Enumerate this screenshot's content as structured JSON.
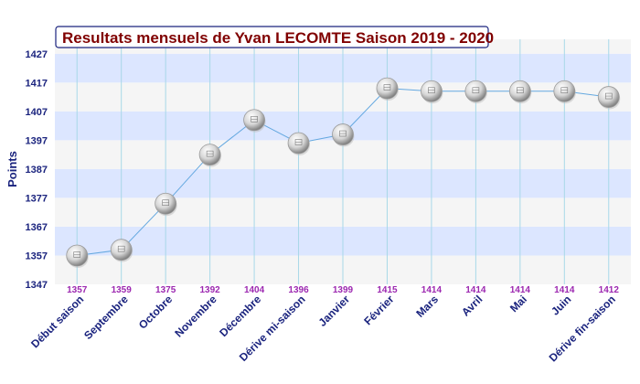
{
  "chart_data": {
    "type": "line",
    "title": "Resultats mensuels de Yvan LECOMTE Saison 2019 - 2020",
    "ylabel": "Points",
    "xlabel": "",
    "ylim": [
      1347,
      1432
    ],
    "yticks": [
      1347,
      1357,
      1367,
      1377,
      1387,
      1397,
      1407,
      1417,
      1427
    ],
    "grid": true,
    "legend": "none",
    "categories": [
      "Début saison",
      "Septembre",
      "Octobre",
      "Novembre",
      "Décembre",
      "Dérive mi-saison",
      "Janvier",
      "Février",
      "Mars",
      "Avril",
      "Mai",
      "Juin",
      "Dérive fin-saison"
    ],
    "series": [
      {
        "values": [
          1357,
          1359,
          1375,
          1392,
          1404,
          1396,
          1399,
          1415,
          1414,
          1414,
          1414,
          1414,
          1412
        ]
      }
    ],
    "data_labels": [
      "1357",
      "1359",
      "1375",
      "1392",
      "1404",
      "1396",
      "1399",
      "1415",
      "1414",
      "1414",
      "1414",
      "1414",
      "1412"
    ],
    "colors": {
      "title": "#800000",
      "band": "#dce6ff",
      "band_alt": "#f5f5f5",
      "grid_line": "#a8d8e8",
      "line": "#64a8e0",
      "axis_text": "#1a237e",
      "value_text": "#9c27b0"
    }
  }
}
